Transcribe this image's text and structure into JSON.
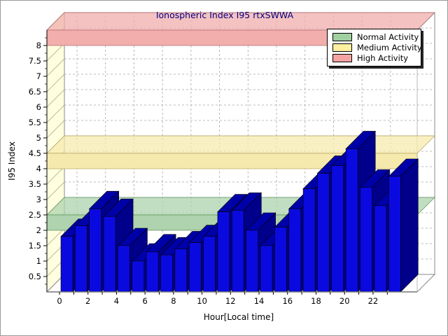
{
  "window": {
    "background": "#ffffff",
    "border_color": "#999999"
  },
  "chart_data": {
    "type": "bar",
    "projection": "3d",
    "title": "Ionospheric Index I95 rtxSWWA",
    "title_color": "#000080",
    "xlabel": "Hour[Local time]",
    "ylabel": "I95 Index",
    "x": [
      0,
      1,
      2,
      3,
      4,
      5,
      6,
      7,
      8,
      9,
      10,
      11,
      12,
      13,
      14,
      15,
      16,
      17,
      18,
      19,
      20,
      21,
      22,
      23
    ],
    "values": [
      1.8,
      2.15,
      2.7,
      2.45,
      1.5,
      1.0,
      1.3,
      1.2,
      1.4,
      1.6,
      1.8,
      2.6,
      2.65,
      2.0,
      1.5,
      2.1,
      2.7,
      3.35,
      3.85,
      4.1,
      4.65,
      3.4,
      2.8,
      3.75
    ],
    "x_tick_labels": [
      "0",
      "2",
      "4",
      "6",
      "8",
      "10",
      "12",
      "14",
      "16",
      "18",
      "20",
      "22"
    ],
    "y_tick_labels": [
      "0.5",
      "1",
      "1.5",
      "2",
      "2.5",
      "3",
      "3.5",
      "4",
      "4.5",
      "5",
      "5.5",
      "6",
      "6.5",
      "7",
      "7.5",
      "8"
    ],
    "ylim": [
      0,
      8.5
    ],
    "y_major_step": 0.5,
    "grid": "dashed-gray",
    "bar_colors": {
      "front": "#0a0ae0",
      "side": "#00008b",
      "top": "#0000a8",
      "outline": "#000000"
    },
    "wall_color": "#ffffe0",
    "bands": [
      {
        "name": "Normal Activity",
        "from": 2.0,
        "to": 2.5,
        "color": "#aed3ae",
        "edge": "#5c8f5c"
      },
      {
        "name": "Medium Activity",
        "from": 4.0,
        "to": 4.5,
        "color": "#f6e9ad",
        "edge": "#b5a45a"
      },
      {
        "name": "High Activity",
        "from": 8.0,
        "to": 8.5,
        "color": "#f2adad",
        "edge": "#b06a6a"
      }
    ],
    "legend": {
      "position": "top-right",
      "items": [
        {
          "label": "Normal Activity",
          "swatch": "#a0cfa0"
        },
        {
          "label": "Medium Activity",
          "swatch": "#fdf0a0"
        },
        {
          "label": "High Activity",
          "swatch": "#f5a3a3"
        }
      ]
    }
  }
}
